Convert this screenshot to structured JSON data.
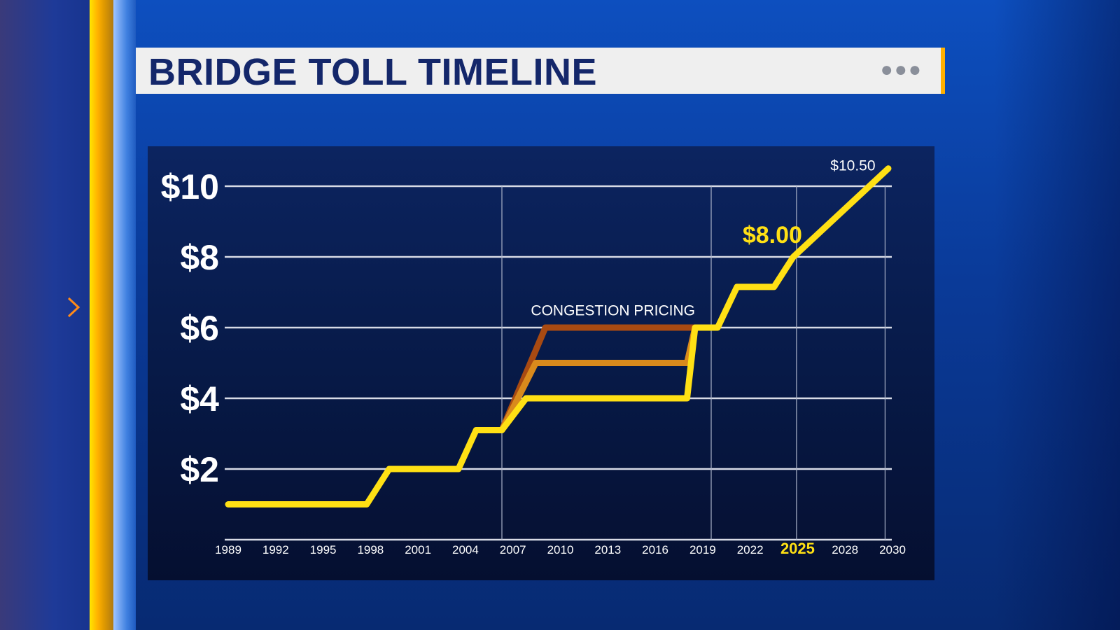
{
  "header": {
    "title": "BRIDGE TOLL TIMELINE",
    "menu_icon": "ellipsis-icon"
  },
  "nav": {
    "icon": "chevron-right-icon"
  },
  "colors": {
    "yellow": "#ffe014",
    "orange": "#d98a1c",
    "rust": "#a84a12",
    "title": "#14276a"
  },
  "chart_data": {
    "type": "line",
    "title": "BRIDGE TOLL TIMELINE",
    "xlabel": "",
    "ylabel": "",
    "xlim": [
      1989,
      2030
    ],
    "ylim": [
      0,
      10.5
    ],
    "yticks": [
      {
        "v": 2,
        "label": "$2"
      },
      {
        "v": 4,
        "label": "$4"
      },
      {
        "v": 6,
        "label": "$6"
      },
      {
        "v": 8,
        "label": "$8"
      },
      {
        "v": 10,
        "label": "$10"
      }
    ],
    "xticks": [
      "1989",
      "1992",
      "1995",
      "1998",
      "2001",
      "2004",
      "2007",
      "2010",
      "2013",
      "2016",
      "2019",
      "2022",
      "2025",
      "2028",
      "2030"
    ],
    "highlight_xtick": "2025",
    "vgrid": [
      2006,
      2019,
      2024.3,
      2029.8
    ],
    "series": [
      {
        "name": "congestion-peak",
        "color": "#a84a12",
        "points": [
          [
            2006,
            3.1
          ],
          [
            2008.7,
            6
          ],
          [
            2018,
            6
          ]
        ]
      },
      {
        "name": "congestion-mid",
        "color": "#d98a1c",
        "points": [
          [
            2006,
            3.1
          ],
          [
            2008.1,
            5
          ],
          [
            2017.5,
            5
          ],
          [
            2018,
            6
          ]
        ]
      },
      {
        "name": "toll",
        "color": "#ffe014",
        "points": [
          [
            1989,
            1
          ],
          [
            1997.6,
            1
          ],
          [
            1999,
            2
          ],
          [
            2003.3,
            2
          ],
          [
            2004.4,
            3.1
          ],
          [
            2006,
            3.1
          ],
          [
            2007.5,
            4
          ],
          [
            2017.5,
            4
          ],
          [
            2018,
            6
          ],
          [
            2019.4,
            6
          ],
          [
            2020.6,
            7.15
          ],
          [
            2022.9,
            7.15
          ],
          [
            2024.1,
            8
          ],
          [
            2030,
            10.5
          ]
        ]
      }
    ],
    "annotations": [
      {
        "text": "CONGESTION PRICING",
        "x": 2012.9,
        "y": 6.35,
        "color": "#ffffff",
        "size": "small"
      },
      {
        "text": "$8.00",
        "x": 2022.8,
        "y": 8.4,
        "color": "#ffe014",
        "size": "large"
      },
      {
        "text": "$10.50",
        "x": 2027.8,
        "y": 10.45,
        "color": "#ffffff",
        "size": "small"
      }
    ]
  }
}
